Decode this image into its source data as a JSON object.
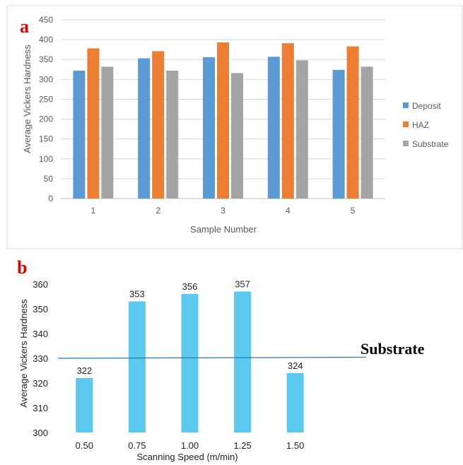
{
  "chart_data": [
    {
      "type": "bar",
      "panel_label": "a",
      "categories": [
        "1",
        "2",
        "3",
        "4",
        "5"
      ],
      "series": [
        {
          "name": "Deposit",
          "color": "#5B9BD5",
          "values": [
            322,
            353,
            356,
            357,
            324
          ]
        },
        {
          "name": "HAZ",
          "color": "#ED7D31",
          "values": [
            378,
            371,
            393,
            391,
            383
          ]
        },
        {
          "name": "Substrate",
          "color": "#A5A5A5",
          "values": [
            332,
            322,
            316,
            348,
            332
          ]
        }
      ],
      "xlabel": "Sample Number",
      "ylabel": "Average Vickers Hardness",
      "ylim": [
        0,
        450
      ],
      "yticks": [
        0,
        50,
        100,
        150,
        200,
        250,
        300,
        350,
        400,
        450
      ],
      "grid": true,
      "legend_position": "right"
    },
    {
      "type": "bar",
      "panel_label": "b",
      "categories": [
        "0.50",
        "0.75",
        "1.00",
        "1.25",
        "1.50"
      ],
      "series": [
        {
          "color": "#5BC8EE",
          "values": [
            322,
            353,
            356,
            357,
            324
          ]
        }
      ],
      "data_labels": [
        "322",
        "353",
        "356",
        "357",
        "324"
      ],
      "xlabel": "Scanning Speed (m/min)",
      "ylabel": "Average Vickers Hardness",
      "ylim": [
        300,
        360
      ],
      "yticks": [
        300,
        310,
        320,
        330,
        340,
        350,
        360
      ],
      "grid": false,
      "reference_line": {
        "label": "Substrate",
        "value_start": 330,
        "value_end": 331,
        "color": "#2E75B6"
      }
    }
  ]
}
